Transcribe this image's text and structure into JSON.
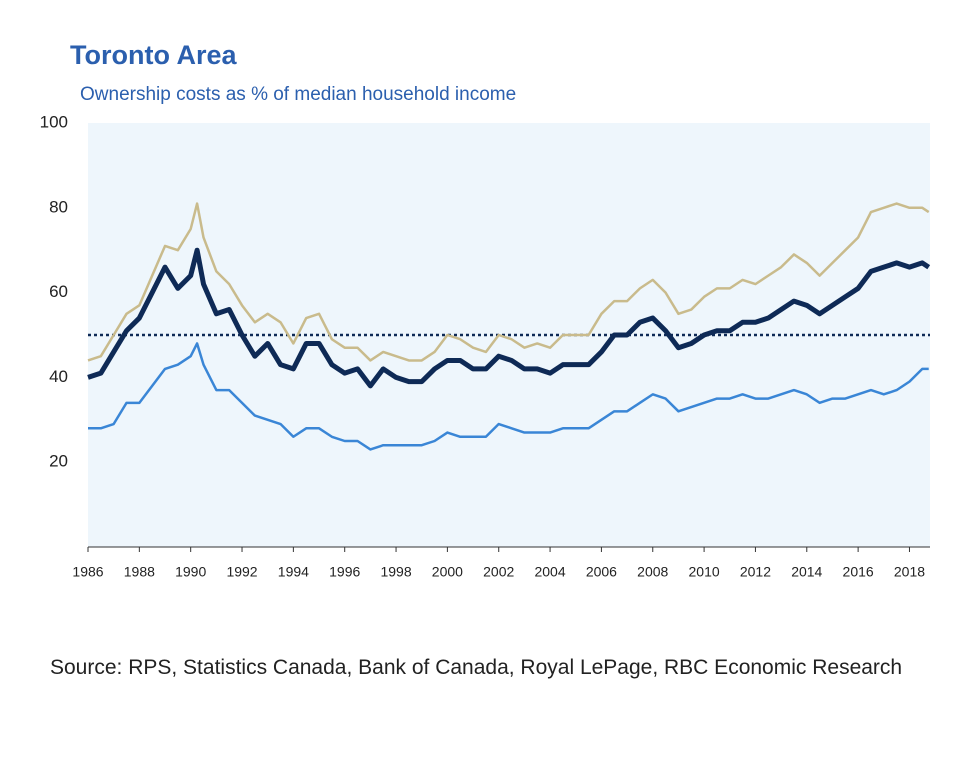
{
  "chart_data": {
    "type": "line",
    "title": "Toronto Area",
    "subtitle": "Ownership costs as % of median household income",
    "x": [
      1986,
      1986.5,
      1987,
      1987.5,
      1988,
      1988.5,
      1989,
      1989.5,
      1990,
      1990.25,
      1990.5,
      1991,
      1991.5,
      1992,
      1992.5,
      1993,
      1993.5,
      1994,
      1994.5,
      1995,
      1995.5,
      1996,
      1996.5,
      1997,
      1997.5,
      1998,
      1998.5,
      1999,
      1999.5,
      2000,
      2000.5,
      2001,
      2001.5,
      2002,
      2002.5,
      2003,
      2003.5,
      2004,
      2004.5,
      2005,
      2005.5,
      2006,
      2006.5,
      2007,
      2007.5,
      2008,
      2008.5,
      2009,
      2009.5,
      2010,
      2010.5,
      2011,
      2011.5,
      2012,
      2012.5,
      2013,
      2013.5,
      2014,
      2014.5,
      2015,
      2015.5,
      2016,
      2016.5,
      2017,
      2017.5,
      2018,
      2018.5,
      2018.75
    ],
    "series": [
      {
        "color": "#c9bb8c",
        "width": 2.5,
        "values": [
          44,
          45,
          50,
          55,
          57,
          64,
          71,
          70,
          75,
          81,
          73,
          65,
          62,
          57,
          53,
          55,
          53,
          48,
          54,
          55,
          49,
          47,
          47,
          44,
          46,
          45,
          44,
          44,
          46,
          50,
          49,
          47,
          46,
          50,
          49,
          47,
          48,
          47,
          50,
          50,
          50,
          55,
          58,
          58,
          61,
          63,
          60,
          55,
          56,
          59,
          61,
          61,
          63,
          62,
          64,
          66,
          69,
          67,
          64,
          67,
          70,
          73,
          79,
          80,
          81,
          80,
          80,
          79
        ]
      },
      {
        "color": "#3a86d6",
        "width": 2.5,
        "values": [
          28,
          28,
          29,
          34,
          34,
          38,
          42,
          43,
          45,
          48,
          43,
          37,
          37,
          34,
          31,
          30,
          29,
          26,
          28,
          28,
          26,
          25,
          25,
          23,
          24,
          24,
          24,
          24,
          25,
          27,
          26,
          26,
          26,
          29,
          28,
          27,
          27,
          27,
          28,
          28,
          28,
          30,
          32,
          32,
          34,
          36,
          35,
          32,
          33,
          34,
          35,
          35,
          36,
          35,
          35,
          36,
          37,
          36,
          34,
          35,
          35,
          36,
          37,
          36,
          37,
          39,
          42,
          42
        ]
      },
      {
        "color": "#0e2a56",
        "width": 5,
        "values": [
          40,
          41,
          46,
          51,
          54,
          60,
          66,
          61,
          64,
          70,
          62,
          55,
          56,
          50,
          45,
          48,
          43,
          42,
          48,
          48,
          43,
          41,
          42,
          38,
          42,
          40,
          39,
          39,
          42,
          44,
          44,
          42,
          42,
          45,
          44,
          42,
          42,
          41,
          43,
          43,
          43,
          46,
          50,
          50,
          53,
          54,
          51,
          47,
          48,
          50,
          51,
          51,
          53,
          53,
          54,
          56,
          58,
          57,
          55,
          57,
          59,
          61,
          65,
          66,
          67,
          66,
          67,
          66
        ]
      }
    ],
    "reference_line": 50,
    "xlim": [
      1986,
      2018.8
    ],
    "xticks": [
      1986,
      1988,
      1990,
      1992,
      1994,
      1996,
      1998,
      2000,
      2002,
      2004,
      2006,
      2008,
      2010,
      2012,
      2014,
      2016,
      2018
    ],
    "ylim": [
      0,
      100
    ],
    "yticks": [
      20,
      40,
      60,
      80,
      100
    ],
    "source": "Source: RPS, Statistics Canada, Bank of Canada, Royal LePage, RBC Economic Research"
  }
}
